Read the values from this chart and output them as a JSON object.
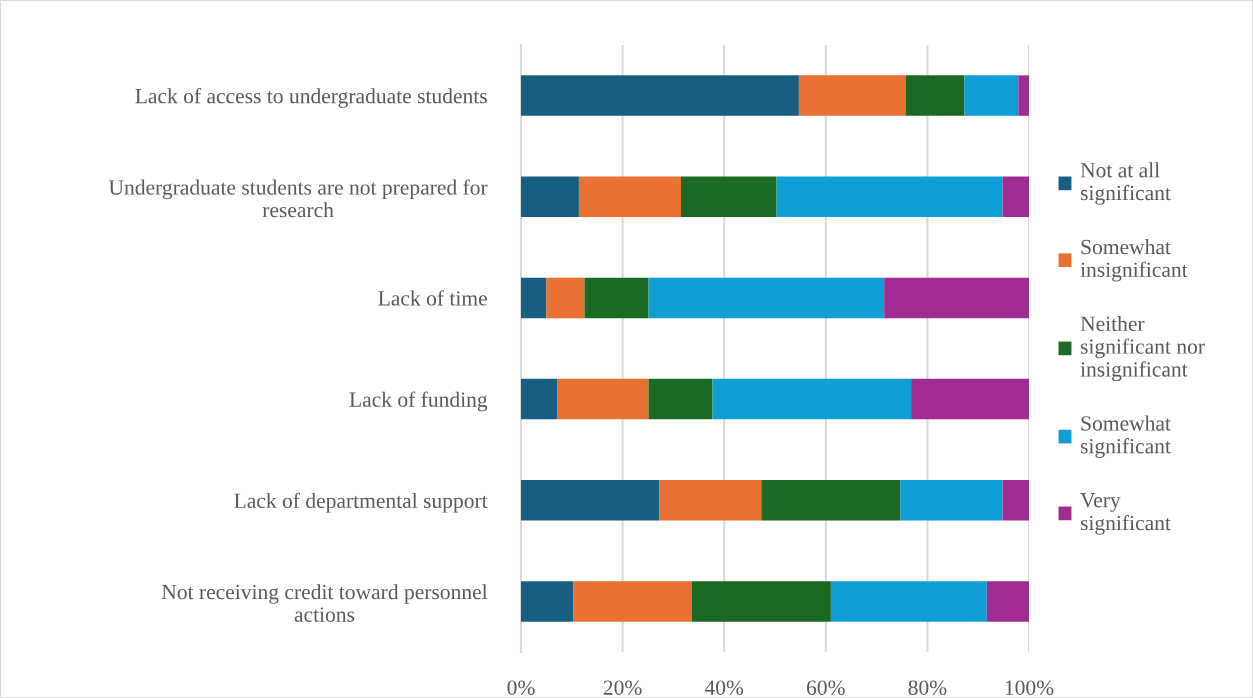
{
  "chart_data": {
    "type": "bar",
    "orientation": "horizontal",
    "stacked": true,
    "categories": [
      "Lack of access to undergraduate students",
      "Undergraduate students are not prepared for\nresearch",
      "Lack of time",
      "Lack of funding",
      "Lack of departmental support",
      "Not receiving credit toward personnel\nactions"
    ],
    "series": [
      {
        "name": "Not at all\nsignificant",
        "color": "#175f82",
        "values": [
          54.7,
          11.4,
          5.0,
          7.1,
          27.2,
          10.3
        ]
      },
      {
        "name": "Somewhat\ninsignificant",
        "color": "#e97132",
        "values": [
          21.0,
          20.1,
          7.5,
          18.0,
          20.1,
          23.3
        ]
      },
      {
        "name": "Neither\nsignificant nor\ninsignificant",
        "color": "#1b6a23",
        "values": [
          11.6,
          18.8,
          12.6,
          12.6,
          27.4,
          27.4
        ]
      },
      {
        "name": "Somewhat\nsignificant",
        "color": "#109ed6",
        "values": [
          10.6,
          44.5,
          46.4,
          39.1,
          20.1,
          30.7
        ]
      },
      {
        "name": "Very\nsignificant",
        "color": "#a02b91",
        "values": [
          2.1,
          5.2,
          28.5,
          23.2,
          5.2,
          8.3
        ]
      }
    ],
    "xlim": [
      0,
      100
    ],
    "xticks": [
      {
        "value": 0,
        "label": "0%"
      },
      {
        "value": 20,
        "label": "20%"
      },
      {
        "value": 40,
        "label": "40%"
      },
      {
        "value": 60,
        "label": "60%"
      },
      {
        "value": 80,
        "label": "80%"
      },
      {
        "value": 100,
        "label": "100%"
      }
    ],
    "grid": "x",
    "legend": "right"
  }
}
